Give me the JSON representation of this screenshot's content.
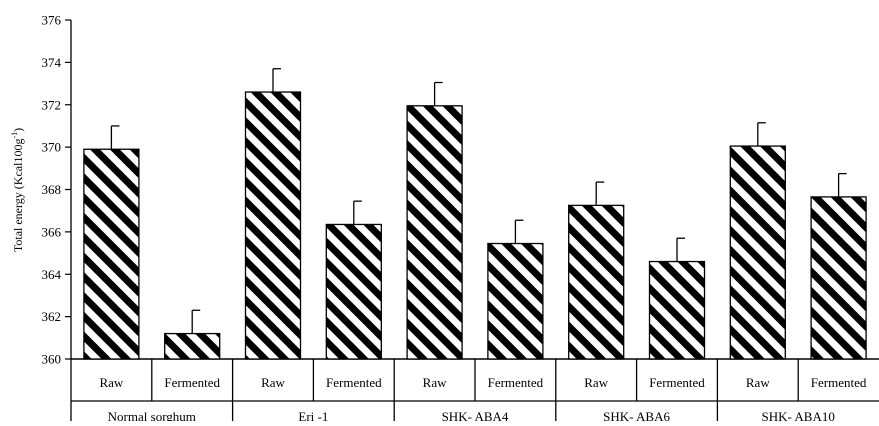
{
  "chart_data": {
    "type": "bar",
    "title": "",
    "ylabel": "Total energy (Kcal100g",
    "ylabel_superscript": "-1",
    "ylabel_suffix": ")",
    "ylim": [
      360,
      376
    ],
    "yticks": [
      "360",
      "362",
      "364",
      "366",
      "368",
      "370",
      "372",
      "374",
      "376"
    ],
    "ytick_values": [
      360,
      362,
      364,
      366,
      368,
      370,
      372,
      374,
      376
    ],
    "categories": [
      "Raw",
      "Fermented",
      "Raw",
      "Fermented",
      "Raw",
      "Fermented",
      "Raw",
      "Fermented",
      "Raw",
      "Fermented"
    ],
    "groups": [
      "Normal sorghum",
      "Eri -1",
      "SHK- ABA4",
      "SHK- ABA6",
      "SHK- ABA10"
    ],
    "values": [
      369.9,
      361.2,
      372.6,
      366.35,
      371.95,
      365.45,
      367.25,
      364.6,
      370.05,
      367.65
    ],
    "errors": [
      1.1,
      1.1,
      1.1,
      1.1,
      1.1,
      1.1,
      1.1,
      1.1,
      1.1,
      1.1
    ],
    "bar_pattern": "diagonal-hatch",
    "grid": false,
    "legend": "none"
  }
}
